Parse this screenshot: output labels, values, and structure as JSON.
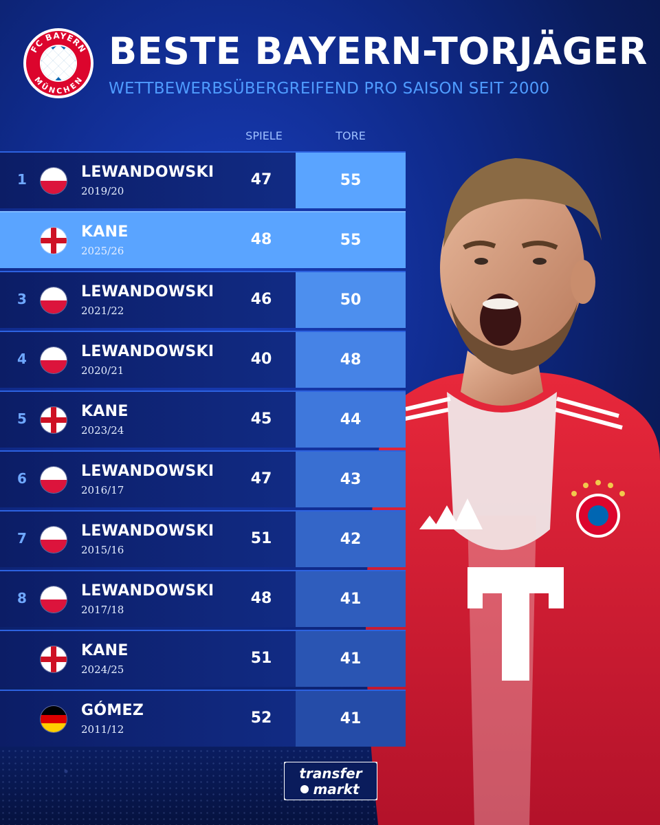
{
  "header": {
    "title": "BESTE BAYERN-TORJÄGER",
    "subtitle": "WETTBEWERBSÜBERGREIFEND PRO SAISON SEIT 2000",
    "club_logo_icon": "fc-bayern-muenchen-logo-icon",
    "club_logo_text_top": "FC BAYERN",
    "club_logo_text_bottom": "MÜNCHEN"
  },
  "columns": {
    "games": "SPIELE",
    "goals": "TORE"
  },
  "rows": [
    {
      "rank": "1",
      "flag": "poland-flag-icon",
      "name": "LEWANDOWSKI",
      "season": "2019/20",
      "games": "47",
      "goals": "55",
      "highlight": false
    },
    {
      "rank": "",
      "flag": "england-flag-icon",
      "name": "KANE",
      "season": "2025/26",
      "games": "48",
      "goals": "55",
      "highlight": true
    },
    {
      "rank": "3",
      "flag": "poland-flag-icon",
      "name": "LEWANDOWSKI",
      "season": "2021/22",
      "games": "46",
      "goals": "50",
      "highlight": false
    },
    {
      "rank": "4",
      "flag": "poland-flag-icon",
      "name": "LEWANDOWSKI",
      "season": "2020/21",
      "games": "40",
      "goals": "48",
      "highlight": false
    },
    {
      "rank": "5",
      "flag": "england-flag-icon",
      "name": "KANE",
      "season": "2023/24",
      "games": "45",
      "goals": "44",
      "highlight": false
    },
    {
      "rank": "6",
      "flag": "poland-flag-icon",
      "name": "LEWANDOWSKI",
      "season": "2016/17",
      "games": "47",
      "goals": "43",
      "highlight": false
    },
    {
      "rank": "7",
      "flag": "poland-flag-icon",
      "name": "LEWANDOWSKI",
      "season": "2015/16",
      "games": "51",
      "goals": "42",
      "highlight": false
    },
    {
      "rank": "8",
      "flag": "poland-flag-icon",
      "name": "LEWANDOWSKI",
      "season": "2017/18",
      "games": "48",
      "goals": "41",
      "highlight": false
    },
    {
      "rank": "",
      "flag": "england-flag-icon",
      "name": "KANE",
      "season": "2024/25",
      "games": "51",
      "goals": "41",
      "highlight": false
    },
    {
      "rank": "",
      "flag": "germany-flag-icon",
      "name": "GÓMEZ",
      "season": "2011/12",
      "games": "52",
      "goals": "41",
      "highlight": false
    }
  ],
  "goals_cell_colors": [
    "#5aa4ff",
    "#5aa4ff",
    "#4d8fee",
    "#4683e6",
    "#3f78dc",
    "#396fd2",
    "#3466c8",
    "#2f5dbd",
    "#2a55b3",
    "#254ca8"
  ],
  "colors": {
    "accent": "#4f9cff",
    "highlight": "#5aa4ff",
    "rank": "#6fa8ff"
  },
  "player_image": "footballer-celebrating-image",
  "footer": {
    "brand_line1": "transfer",
    "brand_line2": "markt"
  }
}
